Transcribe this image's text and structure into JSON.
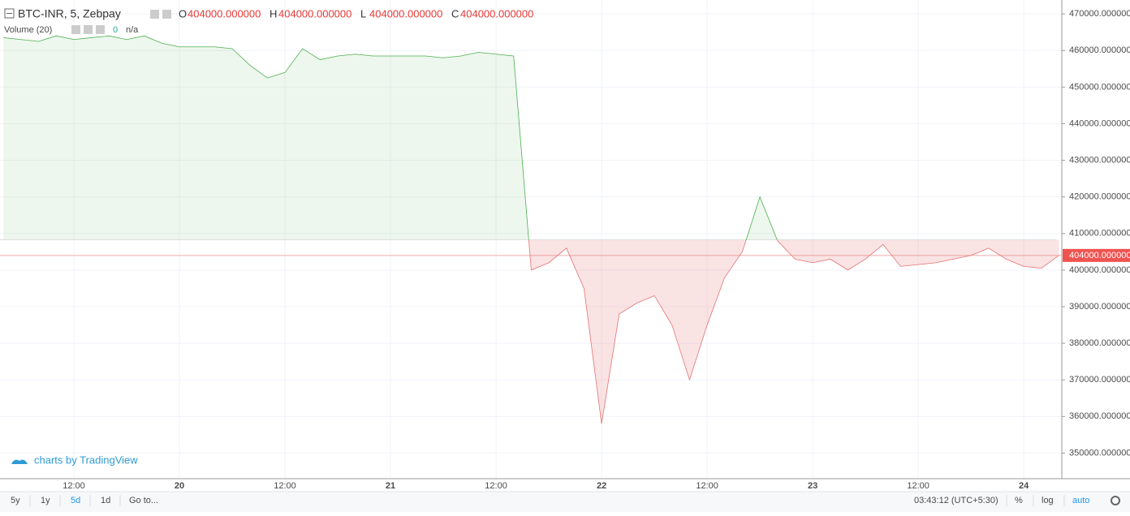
{
  "header": {
    "symbol": "BTC-INR, 5, Zebpay",
    "ohlc": [
      {
        "key": "O",
        "value": 404000,
        "label": "404000.000000"
      },
      {
        "key": "H",
        "value": 404000,
        "label": "404000.000000"
      },
      {
        "key": "L",
        "value": 404000,
        "label": "404000.000000"
      },
      {
        "key": "C",
        "value": 404000,
        "label": "404000.000000"
      }
    ],
    "volume_label": "Volume (20)",
    "volume_value": "0",
    "volume_ma": "n/a"
  },
  "chart_data": {
    "type": "baseline-area",
    "categories": [
      null,
      null,
      null,
      null,
      "12:00",
      null,
      null,
      null,
      null,
      null,
      "20",
      null,
      null,
      null,
      null,
      null,
      "12:00",
      null,
      null,
      null,
      null,
      null,
      "21",
      null,
      null,
      null,
      null,
      null,
      "12:00",
      null,
      null,
      null,
      null,
      null,
      "22",
      null,
      null,
      null,
      null,
      null,
      "12:00",
      null,
      null,
      null,
      null,
      null,
      "23",
      null,
      null,
      null,
      null,
      null,
      "12:00",
      null,
      null,
      null,
      null,
      null,
      "24",
      null,
      null
    ],
    "values": [
      463500,
      463000,
      462500,
      464000,
      463000,
      463500,
      464000,
      463000,
      464000,
      462000,
      461000,
      461000,
      461000,
      460500,
      456000,
      452500,
      454000,
      460500,
      457500,
      458500,
      459000,
      458500,
      458500,
      458500,
      458500,
      458000,
      458500,
      459500,
      459000,
      458500,
      400000,
      402000,
      406000,
      395000,
      358000,
      388000,
      391000,
      393000,
      385000,
      370000,
      385000,
      398000,
      405000,
      420000,
      408000,
      403000,
      402000,
      403000,
      400000,
      403000,
      407000,
      401000,
      401500,
      402000,
      403000,
      404000,
      406000,
      403000,
      401000,
      400500,
      404000
    ],
    "baseline": 408300,
    "color_above": "#4caf50",
    "color_below": "#e57373",
    "last": {
      "value": 404000,
      "label": "404000.000000"
    },
    "ylim": [
      343000,
      473800
    ],
    "yticks": [
      {
        "value": 350000,
        "label": "350000.000000"
      },
      {
        "value": 360000,
        "label": "360000.000000"
      },
      {
        "value": 370000,
        "label": "370000.000000"
      },
      {
        "value": 380000,
        "label": "380000.000000"
      },
      {
        "value": 390000,
        "label": "390000.000000"
      },
      {
        "value": 400000,
        "label": "400000.000000"
      },
      {
        "value": 410000,
        "label": "410000.000000"
      },
      {
        "value": 420000,
        "label": "420000.000000"
      },
      {
        "value": 430000,
        "label": "430000.000000"
      },
      {
        "value": 440000,
        "label": "440000.000000"
      },
      {
        "value": 450000,
        "label": "450000.000000"
      },
      {
        "value": 460000,
        "label": "460000.000000"
      },
      {
        "value": 470000,
        "label": "470000.000000"
      }
    ],
    "grid": true
  },
  "branding": "charts by TradingView",
  "toolbar": {
    "ranges": [
      "5y",
      "1y",
      "5d",
      "1d"
    ],
    "goto": "Go to...",
    "time": "03:43:12 (UTC+5:30)",
    "options": [
      "%",
      "log",
      "auto"
    ]
  }
}
